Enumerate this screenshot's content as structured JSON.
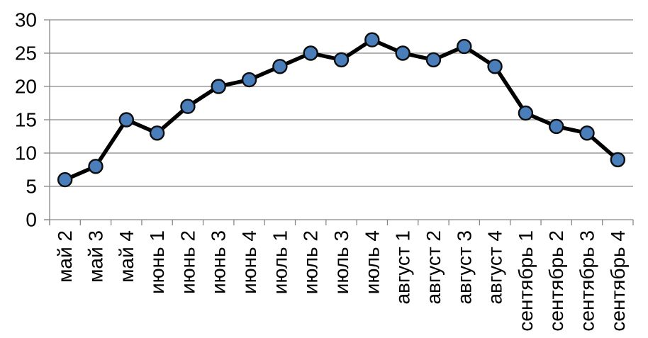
{
  "chart_data": {
    "type": "line",
    "title": "",
    "xlabel": "",
    "ylabel": "",
    "categories": [
      "май 2",
      "май 3",
      "май 4",
      "июнь 1",
      "июнь 2",
      "июнь 3",
      "июнь 4",
      "июль 1",
      "июль 2",
      "июль 3",
      "июль 4",
      "август 1",
      "август 2",
      "август 3",
      "август 4",
      "сентябрь 1",
      "сентябрь 2",
      "сентябрь 3",
      "сентябрь 4"
    ],
    "values": [
      6,
      8,
      15,
      13,
      17,
      20,
      21,
      23,
      25,
      24,
      27,
      25,
      24,
      26,
      23,
      16,
      14,
      13,
      9
    ],
    "ylim": [
      0,
      30
    ],
    "yticks": [
      0,
      5,
      10,
      15,
      20,
      25,
      30
    ],
    "grid": "horizontal",
    "legend": false,
    "x_label_rotation_degrees": 90
  },
  "colors": {
    "background": "#ffffff",
    "series_line": "#000000",
    "marker_fill": "#4a7ebb",
    "marker_stroke": "#0d0d0d",
    "gridline": "#878787",
    "axis": "#878787",
    "tick_label": "#000000"
  }
}
